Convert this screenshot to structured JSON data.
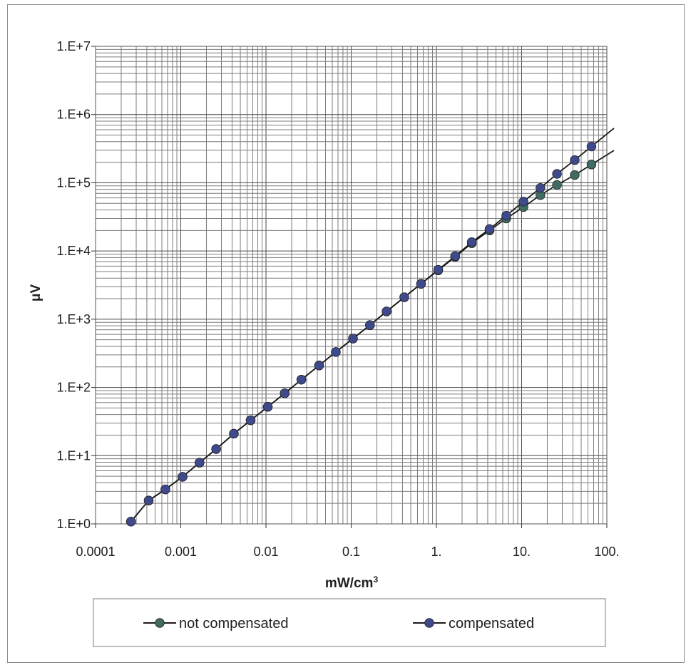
{
  "chart_data": {
    "type": "line",
    "title": "",
    "xlabel": "mW/cm",
    "xlabel_superscript": "3",
    "ylabel": "μV",
    "x_scale": "log",
    "y_scale": "log",
    "xlim": [
      0.0001,
      100
    ],
    "ylim": [
      1,
      10000000
    ],
    "grid": true,
    "legend_position": "bottom",
    "x_tick_labels": [
      "0.0001",
      "0.001",
      "0.01",
      "0.1",
      "1.",
      "10.",
      "100."
    ],
    "y_tick_labels": [
      "1.E+0",
      "1.E+1",
      "1.E+2",
      "1.E+3",
      "1.E+4",
      "1.E+5",
      "1.E+6",
      "1.E+7"
    ],
    "series": [
      {
        "name": "not compensated",
        "color": "#3f6b62",
        "x": [
          0.00026,
          0.00042,
          0.00066,
          0.00105,
          0.00166,
          0.0026,
          0.0042,
          0.0066,
          0.0105,
          0.0166,
          0.026,
          0.042,
          0.066,
          0.105,
          0.166,
          0.26,
          0.42,
          0.66,
          1.05,
          1.66,
          2.6,
          4.2,
          6.6,
          10.5,
          16.6,
          26,
          42,
          66
        ],
        "y": [
          1.08,
          2.2,
          3.2,
          4.9,
          7.9,
          12.5,
          21,
          33,
          52,
          82,
          130,
          210,
          330,
          520,
          820,
          1300,
          2100,
          3300,
          5200,
          8200,
          13000,
          20000,
          30000,
          44000,
          66000,
          93000,
          130000,
          185000
        ]
      },
      {
        "name": "compensated",
        "color": "#3f4a8c",
        "x": [
          0.00026,
          0.00042,
          0.00066,
          0.00105,
          0.00166,
          0.0026,
          0.0042,
          0.0066,
          0.0105,
          0.0166,
          0.026,
          0.042,
          0.066,
          0.105,
          0.166,
          0.26,
          0.42,
          0.66,
          1.05,
          1.66,
          2.6,
          4.2,
          6.6,
          10.5,
          16.6,
          26,
          42,
          66
        ],
        "y": [
          1.08,
          2.2,
          3.2,
          4.9,
          7.9,
          12.5,
          21,
          33,
          52,
          82,
          130,
          210,
          330,
          520,
          820,
          1300,
          2100,
          3300,
          5300,
          8400,
          13500,
          21000,
          33000,
          53000,
          84000,
          135000,
          215000,
          340000
        ]
      }
    ]
  }
}
